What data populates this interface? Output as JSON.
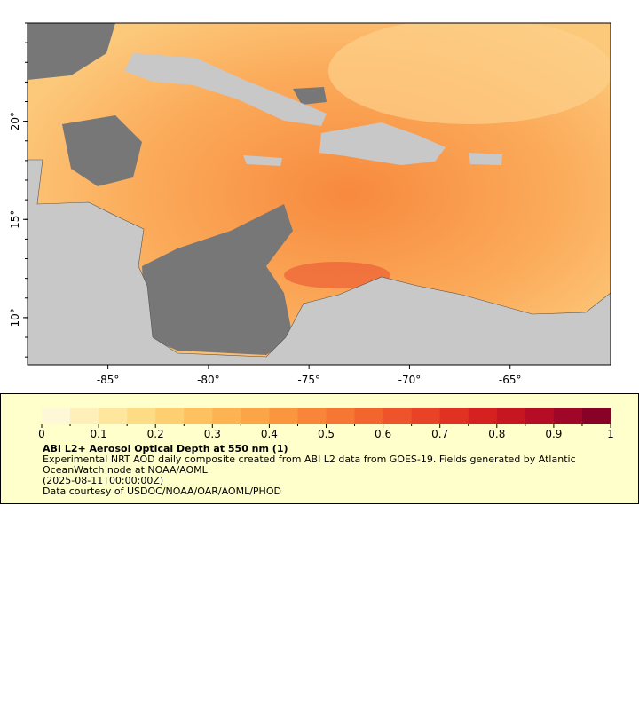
{
  "map": {
    "xlim": [
      -89,
      -60
    ],
    "ylim": [
      7.6,
      25
    ],
    "xticks": [
      {
        "value": -85,
        "label": "-85°"
      },
      {
        "value": -80,
        "label": "-80°"
      },
      {
        "value": -75,
        "label": "-75°"
      },
      {
        "value": -70,
        "label": "-70°"
      },
      {
        "value": -65,
        "label": "-65°"
      }
    ],
    "yticks": [
      {
        "value": 10,
        "label": "10°"
      },
      {
        "value": 15,
        "label": "15°"
      },
      {
        "value": 20,
        "label": "20°"
      }
    ]
  },
  "colorbar": {
    "lim": [
      0,
      1
    ],
    "ticks": [
      0,
      0.1,
      0.2,
      0.3,
      0.4,
      0.5,
      0.6,
      0.7,
      0.8,
      0.9,
      1
    ],
    "minor_ticks": [
      0.05,
      0.15,
      0.25,
      0.35,
      0.45,
      0.55,
      0.65,
      0.75,
      0.85,
      0.95
    ],
    "colormap": [
      "#fff8d6",
      "#ffefb8",
      "#fee69c",
      "#fedc86",
      "#fecf70",
      "#fdc160",
      "#fdb352",
      "#fca547",
      "#fb963f",
      "#f98638",
      "#f67633",
      "#f3652e",
      "#ee542b",
      "#e84227",
      "#e03123",
      "#d52221",
      "#c61622",
      "#b40d25",
      "#9f0628",
      "#880228"
    ]
  },
  "caption": {
    "title": "ABI L2+ Aerosol Optical Depth at 550 nm (1)",
    "description": "Experimental NRT AOD daily composite created from ABI L2 data from GOES-19. Fields generated by Atlantic OceanWatch node at NOAA/AOML",
    "time": "(2025-08-11T00:00:00Z)",
    "credit": "Data courtesy of USDOC/NOAA/OAR/AOML/PHOD"
  }
}
